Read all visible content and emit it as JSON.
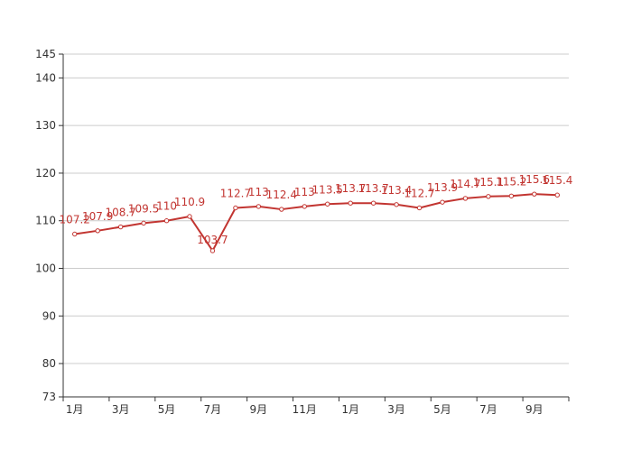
{
  "chart_data": {
    "type": "line",
    "title": "",
    "xlabel": "",
    "ylabel": "",
    "x": [
      "1月",
      "2月",
      "3月",
      "4月",
      "5月",
      "6月",
      "7月",
      "8月",
      "9月",
      "10月",
      "11月",
      "12月",
      "1月",
      "2月",
      "3月",
      "4月",
      "5月",
      "6月",
      "7月",
      "8月",
      "9月",
      "10月"
    ],
    "x_tick_labels": [
      "1月",
      "3月",
      "5月",
      "7月",
      "9月",
      "11月",
      "1月",
      "3月",
      "5月",
      "7月",
      "9月"
    ],
    "series": [
      {
        "values": [
          107.2,
          107.9,
          108.7,
          109.5,
          110,
          110.9,
          103.7,
          112.7,
          113,
          112.4,
          113,
          113.5,
          113.7,
          113.7,
          113.4,
          112.7,
          113.9,
          114.7,
          115.1,
          115.2,
          115.6,
          115.4
        ]
      }
    ],
    "y_ticks": [
      73,
      80,
      90,
      100,
      110,
      120,
      130,
      140,
      145
    ],
    "ylim": [
      73,
      145
    ],
    "grid": true,
    "legend": "none",
    "colors": {
      "line": "#c23531",
      "grid": "#cccccc",
      "axis": "#333333"
    }
  }
}
